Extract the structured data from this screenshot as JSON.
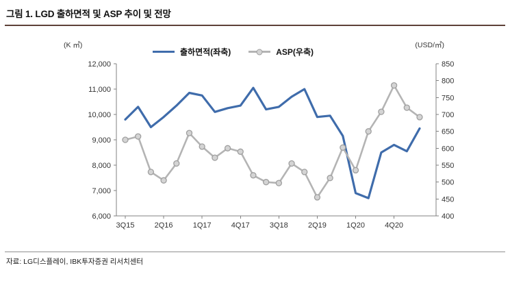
{
  "figure": {
    "title": "그림 1. LGD 출하면적 및 ASP 추이 및 전망",
    "source": "자료: LG디스플레이, IBK투자증권 리서치센터",
    "accent_rule_color": "#5d4037"
  },
  "chart_data": {
    "type": "line",
    "grid": false,
    "legend_position": "top",
    "categories": [
      "3Q15",
      "4Q15",
      "1Q16",
      "2Q16",
      "3Q16",
      "4Q16",
      "1Q17",
      "2Q17",
      "3Q17",
      "4Q17",
      "1Q18",
      "2Q18",
      "3Q18",
      "4Q18",
      "1Q19",
      "2Q19",
      "3Q19",
      "4Q19",
      "1Q20",
      "2Q20",
      "3Q20",
      "4Q20",
      "1Q21",
      "2Q21"
    ],
    "x_tick_labels": [
      "3Q15",
      "2Q16",
      "1Q17",
      "4Q17",
      "3Q18",
      "2Q19",
      "1Q20",
      "4Q20"
    ],
    "x_tick_step": 3,
    "left_axis": {
      "unit": "(K ㎡)",
      "min": 6000,
      "max": 12000,
      "step": 1000
    },
    "right_axis": {
      "unit": "(USD/㎡)",
      "min": 400,
      "max": 850,
      "step": 50
    },
    "series": [
      {
        "name": "출하면적(좌축)",
        "axis": "left",
        "color": "#3f6cab",
        "values": [
          9800,
          10300,
          9500,
          9900,
          10350,
          10850,
          10750,
          10100,
          10250,
          10350,
          11050,
          10200,
          10300,
          10700,
          11000,
          9900,
          9950,
          9150,
          6900,
          6700,
          8500,
          8800,
          8550,
          9450
        ]
      },
      {
        "name": "ASP(우축)",
        "axis": "right",
        "color": "#b4b4b4",
        "marker": "circle",
        "marker_fill": "#d4d4d4",
        "marker_stroke": "#9f9f9f",
        "values": [
          625,
          635,
          530,
          505,
          555,
          645,
          605,
          572,
          600,
          590,
          520,
          500,
          497,
          555,
          530,
          455,
          512,
          602,
          535,
          650,
          708,
          786,
          720,
          692
        ]
      }
    ]
  }
}
